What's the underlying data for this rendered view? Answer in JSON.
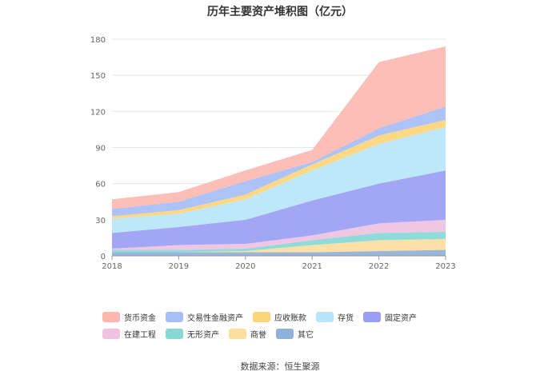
{
  "chart_data": {
    "type": "area",
    "stacked": true,
    "title": "历年主要资产堆积图（亿元）",
    "xlabel": "",
    "ylabel": "",
    "x": [
      "2018",
      "2019",
      "2020",
      "2021",
      "2022",
      "2023"
    ],
    "ylim": [
      0,
      180
    ],
    "yticks": [
      0,
      30,
      60,
      90,
      120,
      150,
      180
    ],
    "grid": true,
    "legend_position": "bottom",
    "series": [
      {
        "name": "其它",
        "color": "#8fb0d8",
        "values": [
          3,
          3,
          3,
          3,
          4,
          5
        ]
      },
      {
        "name": "商誉",
        "color": "#fddda0",
        "values": [
          0,
          0,
          1,
          6,
          9,
          9
        ]
      },
      {
        "name": "无形资产",
        "color": "#86d8d6",
        "values": [
          2,
          2,
          2,
          4,
          6,
          6
        ]
      },
      {
        "name": "在建工程",
        "color": "#eec2e0",
        "values": [
          1,
          4,
          4,
          4,
          8,
          10
        ]
      },
      {
        "name": "固定资产",
        "color": "#9b9ef3",
        "values": [
          13,
          15,
          20,
          29,
          33,
          41
        ]
      },
      {
        "name": "存货",
        "color": "#b8e6f8",
        "values": [
          12,
          11,
          17,
          25,
          33,
          36
        ]
      },
      {
        "name": "应收账款",
        "color": "#fcd47a",
        "values": [
          2,
          3,
          4,
          5,
          7,
          6
        ]
      },
      {
        "name": "交易性金融资产",
        "color": "#a6bdf5",
        "values": [
          6,
          7,
          11,
          2,
          6,
          11
        ]
      },
      {
        "name": "货币资金",
        "color": "#fcb8b0",
        "values": [
          8,
          8,
          9,
          10,
          55,
          50
        ]
      }
    ],
    "legend_order": [
      "货币资金",
      "交易性金融资产",
      "应收账款",
      "存货",
      "固定资产",
      "在建工程",
      "无形资产",
      "商誉",
      "其它"
    ]
  },
  "source_text": "数据来源：恒生聚源"
}
